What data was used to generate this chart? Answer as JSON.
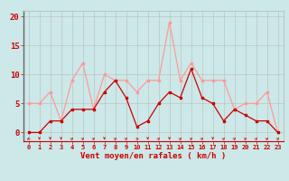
{
  "hours": [
    0,
    1,
    2,
    3,
    4,
    5,
    6,
    7,
    8,
    9,
    10,
    11,
    12,
    13,
    14,
    15,
    16,
    17,
    18,
    19,
    20,
    21,
    22,
    23
  ],
  "wind_avg": [
    0,
    0,
    2,
    2,
    4,
    4,
    4,
    7,
    9,
    6,
    1,
    2,
    5,
    7,
    6,
    11,
    6,
    5,
    2,
    4,
    3,
    2,
    2,
    0
  ],
  "wind_gust": [
    5,
    5,
    7,
    2,
    9,
    12,
    4,
    10,
    9,
    9,
    7,
    9,
    9,
    19,
    9,
    12,
    9,
    9,
    9,
    4,
    5,
    5,
    7,
    0
  ],
  "bg_color": "#cce8e8",
  "grid_color": "#bbbbbb",
  "line_avg_color": "#cc0000",
  "line_gust_color": "#ff9999",
  "axis_color": "#cc0000",
  "tick_color": "#cc0000",
  "xlabel": "Vent moyen/en rafales ( km/h )",
  "ylabel_ticks": [
    0,
    5,
    10,
    15,
    20
  ],
  "ylim": [
    -1.5,
    21
  ],
  "xlim": [
    -0.5,
    23.5
  ]
}
